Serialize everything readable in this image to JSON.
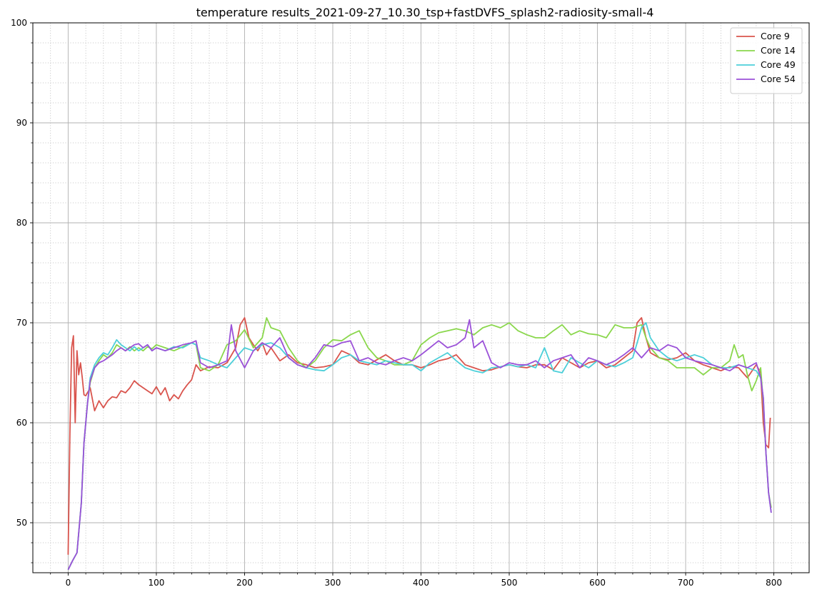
{
  "chart_data": {
    "type": "line",
    "title": "temperature results_2021-09-27_10.30_tsp+fastDVFS_splash2-radiosity-small-4",
    "xlabel": "",
    "ylabel": "",
    "xlim": [
      -40,
      840
    ],
    "ylim": [
      45,
      100
    ],
    "xticks": [
      0,
      100,
      200,
      300,
      400,
      500,
      600,
      700,
      800
    ],
    "xtick_labels": [
      "0",
      "100",
      "200",
      "300",
      "400",
      "500",
      "600",
      "700",
      "800"
    ],
    "yticks": [
      50,
      60,
      70,
      80,
      90,
      100
    ],
    "ytick_labels": [
      "50",
      "60",
      "70",
      "80",
      "90",
      "100"
    ],
    "grid": true,
    "minor_grid": true,
    "legend_position": "top-right",
    "series": [
      {
        "name": "Core 9",
        "color": "#d9544d",
        "x": [
          0,
          2,
          4,
          6,
          8,
          10,
          12,
          14,
          16,
          18,
          20,
          25,
          30,
          35,
          40,
          45,
          50,
          55,
          60,
          65,
          70,
          75,
          80,
          85,
          90,
          95,
          100,
          105,
          110,
          115,
          120,
          125,
          130,
          135,
          140,
          145,
          150,
          160,
          170,
          180,
          190,
          195,
          200,
          205,
          210,
          215,
          220,
          225,
          230,
          240,
          250,
          260,
          270,
          280,
          290,
          300,
          310,
          320,
          330,
          340,
          350,
          360,
          370,
          380,
          390,
          400,
          410,
          420,
          430,
          440,
          450,
          460,
          470,
          480,
          490,
          500,
          510,
          520,
          530,
          540,
          550,
          560,
          570,
          580,
          590,
          600,
          610,
          620,
          630,
          640,
          645,
          650,
          655,
          660,
          670,
          680,
          690,
          700,
          710,
          720,
          730,
          740,
          750,
          760,
          770,
          780,
          785,
          788,
          791,
          794,
          796
        ],
        "values": [
          46.8,
          59,
          67.5,
          68.7,
          60,
          67.2,
          64.8,
          66,
          64.5,
          62.8,
          62.7,
          63.5,
          61.2,
          62.2,
          61.5,
          62.2,
          62.6,
          62.5,
          63.2,
          63,
          63.5,
          64.2,
          63.8,
          63.5,
          63.2,
          62.9,
          63.6,
          62.8,
          63.5,
          62.2,
          62.8,
          62.4,
          63.2,
          63.8,
          64.3,
          65.8,
          65.2,
          65.6,
          65.5,
          66,
          67.5,
          69.8,
          70.5,
          68.5,
          67.8,
          67.2,
          68,
          66.8,
          67.5,
          66.2,
          66.8,
          66,
          65.8,
          65.5,
          65.6,
          65.8,
          67.2,
          66.8,
          66,
          65.8,
          66.3,
          66.8,
          66.2,
          65.8,
          65.8,
          65.5,
          65.8,
          66.2,
          66.4,
          66.8,
          65.8,
          65.5,
          65.2,
          65.3,
          65.6,
          65.8,
          65.6,
          65.5,
          65.8,
          65.8,
          65.3,
          66.5,
          66,
          65.5,
          66,
          66.2,
          65.5,
          65.8,
          66.5,
          67.2,
          70,
          70.5,
          68.5,
          67,
          66.5,
          66.3,
          66.5,
          67,
          66.2,
          65.8,
          65.5,
          65.2,
          65.6,
          65.5,
          64.5,
          65.8,
          65,
          60,
          57.8,
          57.5,
          60.5
        ]
      },
      {
        "name": "Core 14",
        "color": "#8ad74c",
        "x": [
          0,
          5,
          10,
          15,
          18,
          22,
          25,
          30,
          35,
          40,
          45,
          50,
          55,
          60,
          65,
          70,
          75,
          80,
          85,
          90,
          95,
          100,
          110,
          120,
          130,
          140,
          145,
          150,
          160,
          170,
          180,
          190,
          200,
          210,
          220,
          225,
          230,
          240,
          250,
          260,
          270,
          280,
          290,
          300,
          310,
          320,
          330,
          340,
          350,
          360,
          370,
          380,
          390,
          400,
          410,
          420,
          430,
          440,
          450,
          460,
          470,
          480,
          490,
          500,
          510,
          520,
          530,
          540,
          550,
          560,
          570,
          580,
          590,
          600,
          610,
          620,
          630,
          640,
          650,
          655,
          660,
          670,
          680,
          690,
          700,
          710,
          720,
          730,
          740,
          750,
          755,
          760,
          765,
          770,
          775,
          780,
          785,
          788,
          791,
          794,
          797
        ],
        "values": [
          45.3,
          46.2,
          47,
          52,
          58,
          62,
          64,
          65.5,
          66.2,
          66.8,
          66.5,
          67,
          67.8,
          67.5,
          67.2,
          67.6,
          67.2,
          67.5,
          67.2,
          67.6,
          67.4,
          67.8,
          67.5,
          67.2,
          67.6,
          68,
          67.8,
          65.5,
          65.2,
          65.8,
          67.8,
          68.2,
          69.3,
          67.5,
          68.5,
          70.5,
          69.5,
          69.2,
          67.5,
          66.2,
          65.5,
          66.2,
          67.5,
          68.3,
          68.2,
          68.8,
          69.2,
          67.5,
          66.5,
          66.2,
          65.8,
          65.8,
          66.2,
          67.8,
          68.5,
          69,
          69.2,
          69.4,
          69.2,
          68.8,
          69.5,
          69.8,
          69.5,
          70,
          69.2,
          68.8,
          68.5,
          68.5,
          69.2,
          69.8,
          68.8,
          69.2,
          68.9,
          68.8,
          68.5,
          69.8,
          69.5,
          69.5,
          69.8,
          68.5,
          67.5,
          66.5,
          66.2,
          65.5,
          65.5,
          65.5,
          64.8,
          65.5,
          65.5,
          66.2,
          67.8,
          66.5,
          66.8,
          64.8,
          63.2,
          64.2,
          65.5,
          62,
          57,
          53,
          51.5
        ]
      },
      {
        "name": "Core 49",
        "color": "#4ccfd9",
        "x": [
          0,
          5,
          10,
          15,
          18,
          22,
          25,
          30,
          35,
          40,
          45,
          50,
          55,
          60,
          65,
          70,
          75,
          80,
          85,
          90,
          95,
          100,
          110,
          120,
          130,
          140,
          145,
          150,
          160,
          170,
          180,
          190,
          200,
          210,
          220,
          230,
          240,
          250,
          260,
          270,
          280,
          290,
          300,
          310,
          320,
          330,
          340,
          350,
          360,
          370,
          380,
          390,
          400,
          410,
          420,
          430,
          440,
          450,
          460,
          470,
          480,
          490,
          500,
          510,
          520,
          530,
          540,
          550,
          560,
          570,
          580,
          590,
          600,
          610,
          620,
          630,
          640,
          650,
          655,
          660,
          670,
          680,
          690,
          700,
          710,
          720,
          730,
          740,
          750,
          760,
          770,
          780,
          785,
          788,
          791,
          794,
          797
        ],
        "values": [
          45.3,
          46.2,
          47,
          52,
          58,
          62,
          64.5,
          65.8,
          66.5,
          67,
          66.8,
          67.5,
          68.3,
          67.8,
          67.5,
          67.2,
          67.6,
          67.2,
          67.5,
          67.8,
          67.2,
          67.5,
          67.2,
          67.6,
          67.5,
          68,
          67.8,
          66.5,
          66.2,
          65.8,
          65.5,
          66.5,
          67.5,
          67.2,
          67.8,
          68,
          67.5,
          66.5,
          65.8,
          65.5,
          65.3,
          65.2,
          65.8,
          66.5,
          66.8,
          66.2,
          66,
          65.8,
          66.2,
          66,
          65.8,
          65.8,
          65.2,
          66,
          66.5,
          67,
          66.2,
          65.5,
          65.2,
          65,
          65.5,
          65.6,
          65.8,
          65.6,
          65.8,
          65.5,
          67.5,
          65.2,
          65,
          66.5,
          66,
          65.5,
          66.2,
          65.8,
          65.6,
          66,
          66.5,
          69.5,
          70,
          68.5,
          67.2,
          66.5,
          66.2,
          66.5,
          66.8,
          66.5,
          65.8,
          65.5,
          65.5,
          65.8,
          65.5,
          65.2,
          64.5,
          62.5,
          57,
          53,
          51
        ]
      },
      {
        "name": "Core 54",
        "color": "#9b51d8",
        "x": [
          0,
          5,
          10,
          15,
          18,
          22,
          25,
          30,
          35,
          40,
          45,
          50,
          55,
          60,
          65,
          70,
          75,
          80,
          85,
          90,
          95,
          100,
          110,
          120,
          130,
          140,
          145,
          150,
          160,
          170,
          180,
          185,
          190,
          200,
          210,
          220,
          230,
          240,
          250,
          260,
          270,
          280,
          290,
          300,
          310,
          320,
          330,
          340,
          350,
          360,
          370,
          380,
          390,
          400,
          410,
          420,
          430,
          440,
          450,
          455,
          460,
          470,
          480,
          490,
          500,
          510,
          520,
          530,
          540,
          550,
          560,
          570,
          580,
          590,
          600,
          610,
          620,
          630,
          640,
          650,
          660,
          670,
          680,
          690,
          700,
          710,
          720,
          730,
          740,
          750,
          760,
          770,
          780,
          785,
          788,
          791,
          794,
          797
        ],
        "values": [
          45.3,
          46.2,
          47,
          52,
          58,
          62,
          64.2,
          65.5,
          66,
          66.2,
          66.5,
          66.8,
          67.2,
          67.5,
          67.2,
          67.5,
          67.8,
          67.9,
          67.5,
          67.8,
          67.2,
          67.5,
          67.2,
          67.5,
          67.8,
          68,
          68.2,
          66,
          65.5,
          65.8,
          66.2,
          69.8,
          67.2,
          65.5,
          67.2,
          68,
          67.5,
          68.5,
          66.5,
          65.8,
          65.5,
          66.5,
          67.8,
          67.6,
          68,
          68.2,
          66.2,
          66.5,
          66,
          65.8,
          66.2,
          66.5,
          66.2,
          66.8,
          67.5,
          68.2,
          67.5,
          67.8,
          68.5,
          70.3,
          67.5,
          68.2,
          66,
          65.5,
          66,
          65.8,
          65.8,
          66.2,
          65.5,
          66.2,
          66.5,
          66.8,
          65.5,
          66.5,
          66.2,
          65.8,
          66.2,
          66.8,
          67.5,
          66.5,
          67.5,
          67.2,
          67.8,
          67.5,
          66.5,
          66.2,
          66,
          65.8,
          65.5,
          65.2,
          65.8,
          65.5,
          66,
          64.5,
          62.5,
          57,
          53,
          51
        ]
      }
    ]
  }
}
